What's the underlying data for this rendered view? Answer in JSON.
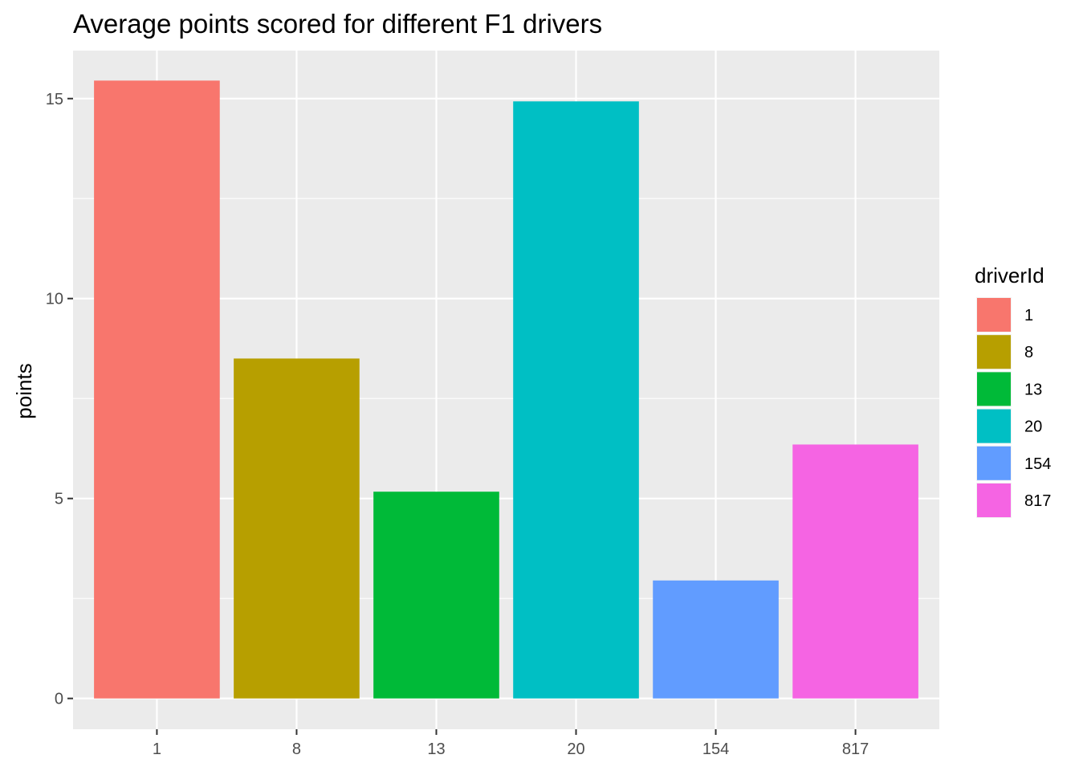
{
  "chart_data": {
    "type": "bar",
    "title": "Average points scored for different F1 drivers",
    "xlabel": "",
    "ylabel": "points",
    "categories": [
      "1",
      "8",
      "13",
      "20",
      "154",
      "817"
    ],
    "values": [
      15.45,
      8.5,
      5.17,
      14.93,
      2.95,
      6.35
    ],
    "colors": [
      "#F8766D",
      "#B79F00",
      "#00BA38",
      "#00BFC4",
      "#619CFF",
      "#F564E3"
    ],
    "ylim": [
      -0.77,
      16.2
    ],
    "yticks": [
      0,
      5,
      10,
      15
    ],
    "grid": true,
    "panel_background": "#EBEBEB",
    "legend": {
      "title": "driverId",
      "position": "right",
      "entries": [
        "1",
        "8",
        "13",
        "20",
        "154",
        "817"
      ]
    }
  }
}
